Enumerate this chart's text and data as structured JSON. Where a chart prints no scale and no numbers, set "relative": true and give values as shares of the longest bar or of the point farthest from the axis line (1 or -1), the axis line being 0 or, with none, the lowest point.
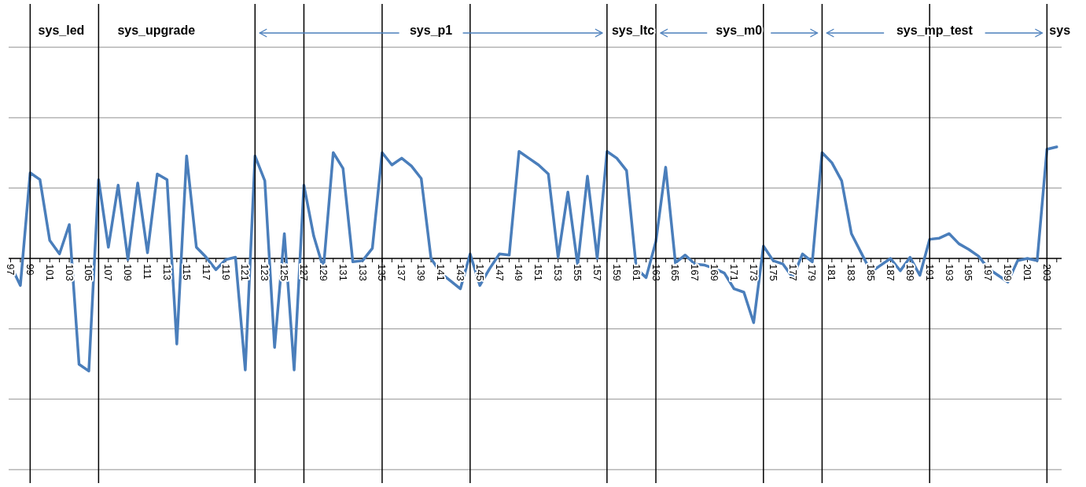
{
  "chart_data": {
    "type": "line",
    "relative": true,
    "marker": "none",
    "line_style": "solid",
    "tick_labels": "x",
    "x": [
      97,
      98,
      99,
      100,
      101,
      102,
      103,
      104,
      105,
      106,
      107,
      108,
      109,
      110,
      111,
      112,
      113,
      114,
      115,
      116,
      117,
      118,
      119,
      120,
      121,
      122,
      123,
      124,
      125,
      126,
      127,
      128,
      129,
      130,
      131,
      132,
      133,
      134,
      135,
      136,
      137,
      138,
      139,
      140,
      141,
      142,
      143,
      144,
      145,
      146,
      147,
      148,
      149,
      150,
      151,
      152,
      153,
      154,
      155,
      156,
      157,
      158,
      159,
      160,
      161,
      162,
      163,
      164,
      165,
      166,
      167,
      168,
      169,
      170,
      171,
      172,
      173,
      174,
      175,
      176,
      177,
      178,
      179,
      180,
      181,
      182,
      183,
      184,
      185,
      186,
      187,
      188,
      189,
      190,
      191,
      192,
      193,
      194,
      195,
      196,
      197,
      198,
      199,
      200,
      201,
      202,
      203,
      204
    ],
    "xlim": [
      96.8,
      204.5
    ],
    "xticks": [
      97,
      {
        "value": 98,
        "label": null
      },
      99,
      {
        "value": 100,
        "label": null
      },
      101,
      {
        "value": 102,
        "label": null
      },
      103,
      {
        "value": 104,
        "label": null
      },
      105,
      {
        "value": 106,
        "label": null
      },
      107,
      {
        "value": 108,
        "label": null
      },
      109,
      {
        "value": 110,
        "label": null
      },
      111,
      {
        "value": 112,
        "label": null
      },
      113,
      {
        "value": 114,
        "label": null
      },
      115,
      {
        "value": 116,
        "label": null
      },
      117,
      {
        "value": 118,
        "label": null
      },
      119,
      {
        "value": 120,
        "label": null
      },
      121,
      {
        "value": 122,
        "label": null
      },
      123,
      {
        "value": 124,
        "label": null
      },
      125,
      {
        "value": 126,
        "label": null
      },
      127,
      {
        "value": 128,
        "label": null
      },
      129,
      {
        "value": 130,
        "label": null
      },
      131,
      {
        "value": 132,
        "label": null
      },
      133,
      {
        "value": 134,
        "label": null
      },
      135,
      {
        "value": 136,
        "label": null
      },
      137,
      {
        "value": 138,
        "label": null
      },
      139,
      {
        "value": 140,
        "label": null
      },
      141,
      {
        "value": 142,
        "label": null
      },
      143,
      {
        "value": 144,
        "label": null
      },
      145,
      {
        "value": 146,
        "label": null
      },
      147,
      {
        "value": 148,
        "label": null
      },
      149,
      {
        "value": 150,
        "label": null
      },
      151,
      {
        "value": 152,
        "label": null
      },
      153,
      {
        "value": 154,
        "label": null
      },
      155,
      {
        "value": 156,
        "label": null
      },
      157,
      {
        "value": 158,
        "label": null
      },
      159,
      {
        "value": 160,
        "label": null
      },
      161,
      {
        "value": 162,
        "label": null
      },
      163,
      {
        "value": 164,
        "label": null
      },
      165,
      {
        "value": 166,
        "label": null
      },
      167,
      {
        "value": 168,
        "label": null
      },
      169,
      {
        "value": 170,
        "label": null
      },
      171,
      {
        "value": 172,
        "label": null
      },
      173,
      {
        "value": 174,
        "label": null
      },
      175,
      {
        "value": 176,
        "label": null
      },
      177,
      {
        "value": 178,
        "label": null
      },
      179,
      {
        "value": 180,
        "label": null
      },
      181,
      {
        "value": 182,
        "label": null
      },
      183,
      {
        "value": 184,
        "label": null
      },
      185,
      {
        "value": 186,
        "label": null
      },
      187,
      {
        "value": 188,
        "label": null
      },
      189,
      {
        "value": 190,
        "label": null
      },
      191,
      {
        "value": 192,
        "label": null
      },
      193,
      {
        "value": 194,
        "label": null
      },
      195,
      {
        "value": 196,
        "label": null
      },
      197,
      {
        "value": 198,
        "label": null
      },
      199,
      {
        "value": 200,
        "label": null
      },
      201,
      {
        "value": 202,
        "label": null
      },
      203,
      {
        "value": 204,
        "label": null
      }
    ],
    "series": [
      {
        "color": "#4a7ebb",
        "values": [
          -0.06,
          -0.24,
          0.76,
          0.7,
          0.16,
          0.04,
          0.3,
          -0.94,
          -1,
          0.7,
          0.1,
          0.65,
          -0.01,
          0.67,
          0.05,
          0.75,
          0.7,
          -0.76,
          0.91,
          0.1,
          0.01,
          -0.1,
          -0.01,
          0.01,
          -0.99,
          0.91,
          0.69,
          -0.79,
          0.22,
          -0.99,
          0.65,
          0.2,
          -0.09,
          0.94,
          0.8,
          -0.03,
          -0.02,
          0.09,
          0.94,
          0.83,
          0.89,
          0.82,
          0.71,
          0,
          -0.13,
          -0.2,
          -0.27,
          0.04,
          -0.24,
          -0.09,
          0.04,
          0.03,
          0.95,
          0.89,
          0.83,
          0.75,
          0.01,
          0.59,
          -0.06,
          0.73,
          0,
          0.95,
          0.89,
          0.78,
          -0.09,
          -0.17,
          0.15,
          0.81,
          -0.04,
          0.03,
          -0.05,
          -0.06,
          -0.09,
          -0.13,
          -0.27,
          -0.3,
          -0.57,
          0.11,
          -0.02,
          -0.05,
          -0.17,
          0.04,
          -0.03,
          0.94,
          0.85,
          0.69,
          0.22,
          0.05,
          -0.12,
          -0.06,
          0,
          -0.11,
          0.01,
          -0.15,
          0.17,
          0.18,
          0.22,
          0.13,
          0.08,
          0.02,
          -0.09,
          -0.15,
          -0.21,
          -0.02,
          0,
          -0.02,
          0.97,
          0.99
        ]
      }
    ],
    "ref_lines": [
      {
        "axis": "y",
        "value": 1.875,
        "color": "#a6a6a6"
      },
      {
        "axis": "y",
        "value": 1.25,
        "color": "#a6a6a6"
      },
      {
        "axis": "y",
        "value": 0.625,
        "color": "#a6a6a6"
      },
      {
        "axis": "y",
        "value": -0.625,
        "color": "#a6a6a6"
      },
      {
        "axis": "y",
        "value": -1.25,
        "color": "#a6a6a6"
      },
      {
        "axis": "y",
        "value": -1.875,
        "color": "#a6a6a6"
      },
      {
        "axis": "x",
        "value": 99,
        "label": "sys_led",
        "color": "#000000"
      },
      {
        "axis": "x",
        "value": 106,
        "label": "sys_upgrade",
        "color": "#000000"
      },
      {
        "axis": "x",
        "value": 122,
        "label": "sys_p1",
        "color": "#000000"
      },
      {
        "axis": "x",
        "value": 127,
        "color": "#000000"
      },
      {
        "axis": "x",
        "value": 135,
        "color": "#000000"
      },
      {
        "axis": "x",
        "value": 144,
        "color": "#000000"
      },
      {
        "axis": "x",
        "value": 158,
        "label": "sys_ltc",
        "color": "#000000"
      },
      {
        "axis": "x",
        "value": 163,
        "label": "sys_m0",
        "color": "#000000"
      },
      {
        "axis": "x",
        "value": 174,
        "color": "#000000"
      },
      {
        "axis": "x",
        "value": 180,
        "label": "sys_mp_test",
        "color": "#000000"
      },
      {
        "axis": "x",
        "value": 191,
        "color": "#000000"
      },
      {
        "axis": "x",
        "value": 203,
        "label": "sys",
        "color": "#000000"
      }
    ]
  }
}
